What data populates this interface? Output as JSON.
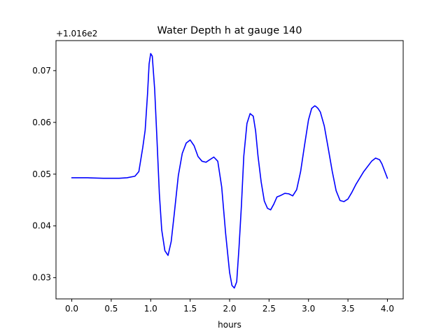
{
  "chart_data": {
    "type": "line",
    "title": "Water Depth h at gauge 140",
    "xlabel": "hours",
    "ylabel": "",
    "offset_label": "+1.016e2",
    "xlim": [
      -0.2,
      4.2
    ],
    "ylim": [
      0.0259,
      0.0758
    ],
    "xticks": [
      0.0,
      0.5,
      1.0,
      1.5,
      2.0,
      2.5,
      3.0,
      3.5,
      4.0
    ],
    "xtick_labels": [
      "0.0",
      "0.5",
      "1.0",
      "1.5",
      "2.0",
      "2.5",
      "3.0",
      "3.5",
      "4.0"
    ],
    "yticks": [
      0.03,
      0.04,
      0.05,
      0.06,
      0.07
    ],
    "ytick_labels": [
      "0.03",
      "0.04",
      "0.05",
      "0.06",
      "0.07"
    ],
    "grid": false,
    "series": [
      {
        "color": "#0000ff",
        "x": [
          0.0,
          0.2,
          0.4,
          0.6,
          0.7,
          0.8,
          0.85,
          0.9,
          0.93,
          0.96,
          0.98,
          1.0,
          1.02,
          1.05,
          1.08,
          1.11,
          1.14,
          1.18,
          1.22,
          1.26,
          1.3,
          1.35,
          1.4,
          1.45,
          1.5,
          1.55,
          1.6,
          1.65,
          1.7,
          1.75,
          1.8,
          1.85,
          1.9,
          1.95,
          2.0,
          2.03,
          2.06,
          2.09,
          2.12,
          2.15,
          2.18,
          2.22,
          2.26,
          2.3,
          2.33,
          2.36,
          2.4,
          2.44,
          2.48,
          2.52,
          2.56,
          2.6,
          2.65,
          2.7,
          2.75,
          2.8,
          2.85,
          2.9,
          2.95,
          3.0,
          3.04,
          3.08,
          3.1,
          3.12,
          3.15,
          3.2,
          3.25,
          3.3,
          3.35,
          3.4,
          3.45,
          3.5,
          3.55,
          3.6,
          3.7,
          3.8,
          3.85,
          3.9,
          3.93,
          3.96,
          4.0
        ],
        "y": [
          0.0493,
          0.0493,
          0.0492,
          0.0492,
          0.0493,
          0.0496,
          0.0505,
          0.0552,
          0.0585,
          0.0655,
          0.0713,
          0.0733,
          0.0728,
          0.0665,
          0.0566,
          0.0462,
          0.0392,
          0.0352,
          0.0343,
          0.037,
          0.0425,
          0.0497,
          0.054,
          0.056,
          0.0566,
          0.0555,
          0.0534,
          0.0525,
          0.0523,
          0.0528,
          0.0533,
          0.0525,
          0.0475,
          0.0385,
          0.031,
          0.0285,
          0.028,
          0.0292,
          0.036,
          0.044,
          0.0535,
          0.0598,
          0.0617,
          0.0612,
          0.0583,
          0.0535,
          0.0485,
          0.0448,
          0.0434,
          0.0431,
          0.0442,
          0.0456,
          0.0459,
          0.0463,
          0.0462,
          0.0458,
          0.047,
          0.0505,
          0.0556,
          0.0605,
          0.0627,
          0.0632,
          0.063,
          0.0627,
          0.062,
          0.0593,
          0.055,
          0.0506,
          0.0468,
          0.0449,
          0.0447,
          0.0452,
          0.0465,
          0.048,
          0.0505,
          0.0525,
          0.0531,
          0.0528,
          0.052,
          0.0508,
          0.0492
        ]
      }
    ]
  }
}
